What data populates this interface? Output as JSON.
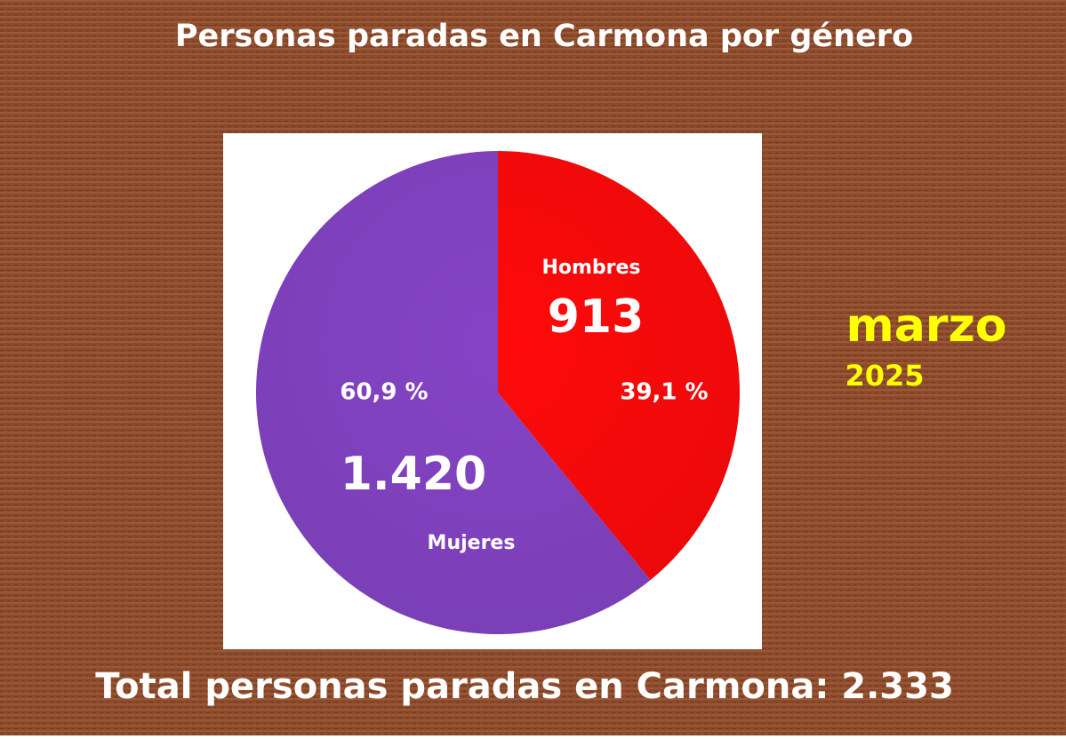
{
  "chart_data": {
    "type": "pie",
    "title": "Personas paradas en Carmona por género",
    "categories": [
      "Hombres",
      "Mujeres"
    ],
    "values": [
      913,
      1420
    ],
    "value_labels": [
      "913",
      "1.420"
    ],
    "percentages": [
      39.1,
      60.9
    ],
    "percentage_labels": [
      "39,1 %",
      "60,9 %"
    ],
    "colors": [
      "#ff0a0a",
      "#8544c6"
    ],
    "annotations": [
      "marzo",
      "2025",
      "Total personas paradas en Carmona: 2.333"
    ]
  }
}
